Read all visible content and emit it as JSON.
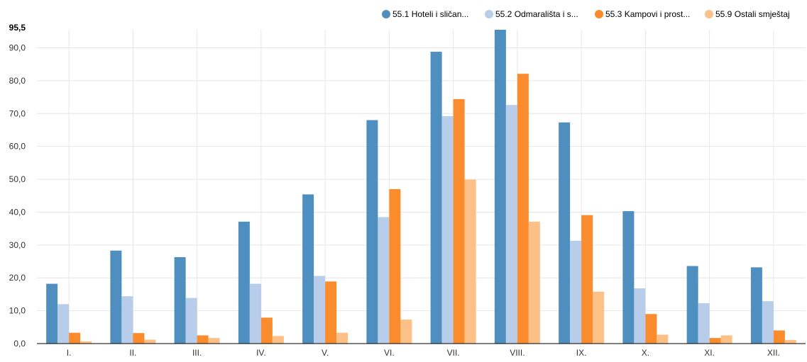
{
  "chart_data": {
    "type": "bar",
    "title": "",
    "xlabel": "",
    "ylabel": "",
    "ylim": [
      0,
      95.5
    ],
    "y_max_label": "95,5",
    "y_ticks": [
      0,
      10,
      20,
      30,
      40,
      50,
      60,
      70,
      80,
      90
    ],
    "y_tick_labels": [
      "0,0",
      "10,0",
      "20,0",
      "30,0",
      "40,0",
      "50,0",
      "60,0",
      "70,0",
      "80,0",
      "90,0"
    ],
    "categories": [
      "I.",
      "II.",
      "III.",
      "IV.",
      "V.",
      "VI.",
      "VII.",
      "VIII.",
      "IX.",
      "X.",
      "XI.",
      "XII."
    ],
    "grid": true,
    "legend_position": "top-right",
    "series": [
      {
        "name": "55.1 Hoteli i sličan...",
        "color": "#4f8fc0",
        "values": [
          18.2,
          28.3,
          26.3,
          37.1,
          45.4,
          68.0,
          88.8,
          95.5,
          67.3,
          40.3,
          23.6,
          23.2
        ]
      },
      {
        "name": "55.2 Odmarališta i s...",
        "color": "#b7cde9",
        "values": [
          12.0,
          14.4,
          13.9,
          18.2,
          20.6,
          38.5,
          69.2,
          72.6,
          31.3,
          16.8,
          12.3,
          12.9
        ]
      },
      {
        "name": "55.3 Kampovi i prost...",
        "color": "#fb8c2d",
        "values": [
          3.3,
          3.2,
          2.5,
          7.9,
          18.9,
          47.0,
          74.4,
          82.1,
          39.1,
          9.0,
          1.7,
          4.0
        ]
      },
      {
        "name": "55.9 Ostali smještaj",
        "color": "#fdc086",
        "values": [
          0.7,
          1.2,
          1.7,
          2.3,
          3.3,
          7.3,
          49.9,
          37.1,
          15.8,
          2.7,
          2.5,
          1.1
        ]
      }
    ]
  }
}
